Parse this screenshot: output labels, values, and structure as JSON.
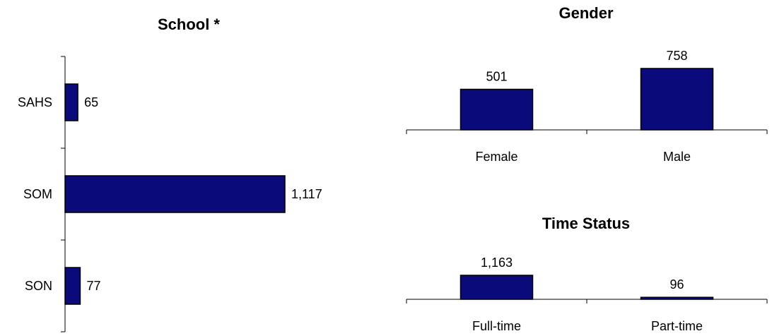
{
  "colors": {
    "bar_fill": "#0a0a7a",
    "bar_stroke": "#000000",
    "axis": "#000000"
  },
  "chart_data": [
    {
      "type": "bar",
      "orientation": "horizontal",
      "title": "School *",
      "categories": [
        "SAHS",
        "SOM",
        "SON"
      ],
      "values": [
        65,
        1117,
        77
      ],
      "value_labels": [
        "65",
        "1,117",
        "77"
      ],
      "xlabel": "",
      "ylabel": "",
      "grid": false
    },
    {
      "type": "bar",
      "orientation": "vertical",
      "title": "Gender",
      "categories": [
        "Female",
        "Male"
      ],
      "values": [
        501,
        758
      ],
      "value_labels": [
        "501",
        "758"
      ],
      "xlabel": "",
      "ylabel": "",
      "grid": false
    },
    {
      "type": "bar",
      "orientation": "vertical",
      "title": "Time Status",
      "categories": [
        "Full-time",
        "Part-time"
      ],
      "values": [
        1163,
        96
      ],
      "value_labels": [
        "1,163",
        "96"
      ],
      "xlabel": "",
      "ylabel": "",
      "grid": false
    }
  ]
}
